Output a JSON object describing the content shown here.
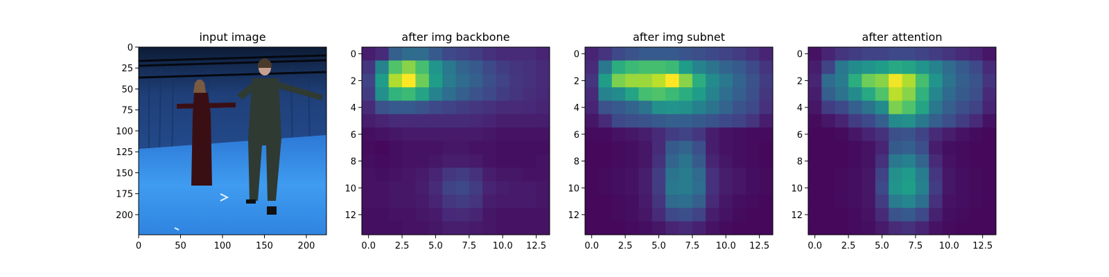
{
  "figure": {
    "background": "#ffffff"
  },
  "chart_data": [
    {
      "type": "heatmap",
      "kind": "photo",
      "title": "input image",
      "xlim": [
        0,
        224
      ],
      "ylim": [
        224,
        0
      ],
      "xticks": [
        "0",
        "50",
        "100",
        "150",
        "200"
      ],
      "yticks": [
        "0",
        "25",
        "50",
        "75",
        "100",
        "125",
        "150",
        "175",
        "200"
      ],
      "scene": "two people standing with arms outstretched in a blue motion-capture studio"
    },
    {
      "type": "heatmap",
      "title": "after img backbone",
      "colormap": "viridis",
      "grid_size": [
        14,
        14
      ],
      "xticks": [
        "0.0",
        "2.5",
        "5.0",
        "7.5",
        "10.0",
        "12.5"
      ],
      "yticks": [
        "0",
        "2",
        "4",
        "6",
        "8",
        "10",
        "12"
      ],
      "values": [
        [
          0.08,
          0.12,
          0.3,
          0.35,
          0.35,
          0.28,
          0.22,
          0.2,
          0.18,
          0.14,
          0.12,
          0.12,
          0.12,
          0.1
        ],
        [
          0.15,
          0.45,
          0.72,
          0.82,
          0.7,
          0.52,
          0.4,
          0.32,
          0.28,
          0.22,
          0.18,
          0.15,
          0.14,
          0.12
        ],
        [
          0.2,
          0.55,
          0.88,
          1.0,
          0.78,
          0.55,
          0.42,
          0.35,
          0.3,
          0.24,
          0.2,
          0.16,
          0.14,
          0.12
        ],
        [
          0.18,
          0.5,
          0.65,
          0.68,
          0.58,
          0.45,
          0.36,
          0.3,
          0.26,
          0.22,
          0.18,
          0.15,
          0.13,
          0.11
        ],
        [
          0.12,
          0.25,
          0.28,
          0.28,
          0.26,
          0.22,
          0.2,
          0.18,
          0.16,
          0.14,
          0.12,
          0.12,
          0.11,
          0.1
        ],
        [
          0.08,
          0.1,
          0.12,
          0.12,
          0.12,
          0.12,
          0.12,
          0.12,
          0.11,
          0.1,
          0.08,
          0.08,
          0.08,
          0.08
        ],
        [
          0.04,
          0.05,
          0.06,
          0.07,
          0.07,
          0.07,
          0.07,
          0.07,
          0.07,
          0.06,
          0.05,
          0.05,
          0.05,
          0.05
        ],
        [
          0.03,
          0.02,
          0.04,
          0.05,
          0.05,
          0.05,
          0.06,
          0.06,
          0.05,
          0.05,
          0.04,
          0.04,
          0.04,
          0.04
        ],
        [
          0.04,
          0.03,
          0.04,
          0.05,
          0.05,
          0.06,
          0.08,
          0.08,
          0.07,
          0.05,
          0.04,
          0.04,
          0.04,
          0.05
        ],
        [
          0.05,
          0.04,
          0.05,
          0.06,
          0.07,
          0.1,
          0.16,
          0.18,
          0.14,
          0.08,
          0.06,
          0.06,
          0.05,
          0.05
        ],
        [
          0.05,
          0.05,
          0.06,
          0.06,
          0.08,
          0.12,
          0.2,
          0.22,
          0.18,
          0.1,
          0.08,
          0.07,
          0.07,
          0.06
        ],
        [
          0.05,
          0.05,
          0.06,
          0.06,
          0.07,
          0.1,
          0.16,
          0.18,
          0.15,
          0.08,
          0.07,
          0.07,
          0.07,
          0.06
        ],
        [
          0.04,
          0.04,
          0.05,
          0.05,
          0.06,
          0.07,
          0.11,
          0.12,
          0.1,
          0.06,
          0.05,
          0.05,
          0.05,
          0.05
        ],
        [
          0.04,
          0.04,
          0.04,
          0.05,
          0.05,
          0.06,
          0.08,
          0.08,
          0.07,
          0.06,
          0.05,
          0.05,
          0.05,
          0.05
        ]
      ]
    },
    {
      "type": "heatmap",
      "title": "after img subnet",
      "colormap": "viridis",
      "grid_size": [
        14,
        14
      ],
      "xticks": [
        "0.0",
        "2.5",
        "5.0",
        "7.5",
        "10.0",
        "12.5"
      ],
      "yticks": [
        "0",
        "2",
        "4",
        "6",
        "8",
        "10",
        "12"
      ],
      "values": [
        [
          0.1,
          0.15,
          0.22,
          0.25,
          0.28,
          0.28,
          0.28,
          0.26,
          0.24,
          0.22,
          0.2,
          0.18,
          0.14,
          0.1
        ],
        [
          0.12,
          0.4,
          0.62,
          0.68,
          0.7,
          0.7,
          0.68,
          0.55,
          0.45,
          0.38,
          0.32,
          0.28,
          0.22,
          0.15
        ],
        [
          0.15,
          0.55,
          0.8,
          0.85,
          0.85,
          0.9,
          1.0,
          0.82,
          0.62,
          0.48,
          0.4,
          0.32,
          0.25,
          0.18
        ],
        [
          0.12,
          0.45,
          0.48,
          0.58,
          0.7,
          0.72,
          0.68,
          0.62,
          0.55,
          0.45,
          0.36,
          0.3,
          0.24,
          0.16
        ],
        [
          0.1,
          0.25,
          0.28,
          0.32,
          0.38,
          0.5,
          0.52,
          0.5,
          0.44,
          0.38,
          0.32,
          0.26,
          0.22,
          0.14
        ],
        [
          0.06,
          0.12,
          0.22,
          0.24,
          0.26,
          0.28,
          0.3,
          0.3,
          0.28,
          0.26,
          0.22,
          0.2,
          0.15,
          0.08
        ],
        [
          0.03,
          0.03,
          0.05,
          0.06,
          0.08,
          0.12,
          0.18,
          0.2,
          0.16,
          0.08,
          0.05,
          0.04,
          0.03,
          0.03
        ],
        [
          0.02,
          0.02,
          0.03,
          0.04,
          0.06,
          0.12,
          0.28,
          0.32,
          0.24,
          0.08,
          0.05,
          0.04,
          0.03,
          0.02
        ],
        [
          0.02,
          0.02,
          0.03,
          0.04,
          0.06,
          0.14,
          0.32,
          0.38,
          0.28,
          0.1,
          0.06,
          0.04,
          0.03,
          0.02
        ],
        [
          0.02,
          0.03,
          0.04,
          0.05,
          0.08,
          0.18,
          0.38,
          0.42,
          0.34,
          0.14,
          0.08,
          0.06,
          0.04,
          0.03
        ],
        [
          0.02,
          0.03,
          0.04,
          0.05,
          0.08,
          0.18,
          0.4,
          0.42,
          0.36,
          0.14,
          0.08,
          0.06,
          0.04,
          0.03
        ],
        [
          0.02,
          0.02,
          0.03,
          0.04,
          0.07,
          0.15,
          0.34,
          0.36,
          0.3,
          0.12,
          0.06,
          0.04,
          0.03,
          0.02
        ],
        [
          0.02,
          0.02,
          0.03,
          0.04,
          0.06,
          0.12,
          0.22,
          0.24,
          0.2,
          0.08,
          0.05,
          0.03,
          0.02,
          0.02
        ],
        [
          0.02,
          0.02,
          0.02,
          0.03,
          0.04,
          0.06,
          0.1,
          0.12,
          0.09,
          0.05,
          0.03,
          0.02,
          0.02,
          0.02
        ]
      ]
    },
    {
      "type": "heatmap",
      "title": "after attention",
      "colormap": "viridis",
      "grid_size": [
        14,
        14
      ],
      "xticks": [
        "0.0",
        "2.5",
        "5.0",
        "7.5",
        "10.0",
        "12.5"
      ],
      "yticks": [
        "0",
        "2",
        "4",
        "6",
        "8",
        "10",
        "12"
      ],
      "values": [
        [
          0.05,
          0.1,
          0.15,
          0.18,
          0.2,
          0.2,
          0.22,
          0.22,
          0.2,
          0.18,
          0.15,
          0.12,
          0.1,
          0.06
        ],
        [
          0.08,
          0.2,
          0.4,
          0.48,
          0.52,
          0.55,
          0.6,
          0.58,
          0.52,
          0.45,
          0.35,
          0.28,
          0.22,
          0.12
        ],
        [
          0.1,
          0.35,
          0.42,
          0.62,
          0.78,
          0.82,
          0.98,
          0.88,
          0.7,
          0.52,
          0.38,
          0.3,
          0.26,
          0.15
        ],
        [
          0.08,
          0.3,
          0.38,
          0.48,
          0.6,
          0.72,
          0.9,
          0.82,
          0.64,
          0.46,
          0.34,
          0.28,
          0.24,
          0.12
        ],
        [
          0.06,
          0.18,
          0.22,
          0.3,
          0.38,
          0.48,
          0.8,
          0.72,
          0.58,
          0.4,
          0.3,
          0.24,
          0.2,
          0.1
        ],
        [
          0.03,
          0.06,
          0.1,
          0.18,
          0.22,
          0.3,
          0.48,
          0.5,
          0.4,
          0.3,
          0.24,
          0.18,
          0.12,
          0.05
        ],
        [
          0.02,
          0.02,
          0.03,
          0.06,
          0.1,
          0.14,
          0.24,
          0.26,
          0.2,
          0.12,
          0.08,
          0.05,
          0.03,
          0.02
        ],
        [
          0.02,
          0.02,
          0.02,
          0.03,
          0.05,
          0.1,
          0.28,
          0.3,
          0.24,
          0.08,
          0.04,
          0.03,
          0.02,
          0.02
        ],
        [
          0.02,
          0.02,
          0.02,
          0.03,
          0.05,
          0.14,
          0.4,
          0.44,
          0.32,
          0.12,
          0.05,
          0.03,
          0.02,
          0.02
        ],
        [
          0.02,
          0.02,
          0.03,
          0.04,
          0.06,
          0.2,
          0.5,
          0.54,
          0.42,
          0.16,
          0.06,
          0.04,
          0.03,
          0.02
        ],
        [
          0.02,
          0.02,
          0.03,
          0.04,
          0.06,
          0.22,
          0.52,
          0.56,
          0.44,
          0.18,
          0.06,
          0.04,
          0.03,
          0.02
        ],
        [
          0.02,
          0.02,
          0.03,
          0.04,
          0.06,
          0.18,
          0.42,
          0.46,
          0.36,
          0.14,
          0.05,
          0.04,
          0.03,
          0.02
        ],
        [
          0.02,
          0.02,
          0.02,
          0.03,
          0.05,
          0.12,
          0.26,
          0.28,
          0.22,
          0.09,
          0.04,
          0.03,
          0.02,
          0.02
        ],
        [
          0.02,
          0.02,
          0.02,
          0.03,
          0.04,
          0.07,
          0.12,
          0.14,
          0.1,
          0.05,
          0.03,
          0.02,
          0.02,
          0.02
        ]
      ]
    }
  ]
}
